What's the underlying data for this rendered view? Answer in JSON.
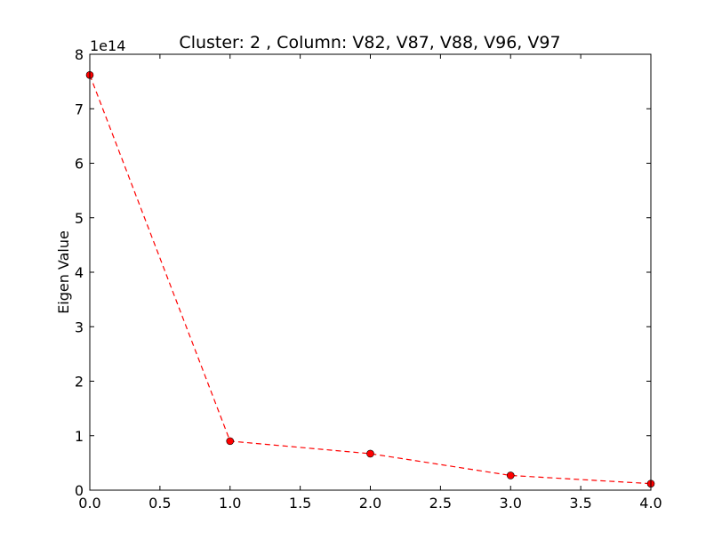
{
  "chart_data": {
    "type": "line",
    "title": "Cluster: 2 , Column: V82, V87, V88, V96, V97",
    "xlabel": "",
    "ylabel": "Eigen Value",
    "y_offset_label": "1e14",
    "xlim": [
      0.0,
      4.0
    ],
    "ylim": [
      0,
      8
    ],
    "x_ticks": [
      0.0,
      0.5,
      1.0,
      1.5,
      2.0,
      2.5,
      3.0,
      3.5,
      4.0
    ],
    "x_tick_labels": [
      "0.0",
      "0.5",
      "1.0",
      "1.5",
      "2.0",
      "2.5",
      "3.0",
      "3.5",
      "4.0"
    ],
    "y_ticks": [
      0,
      1,
      2,
      3,
      4,
      5,
      6,
      7,
      8
    ],
    "y_tick_labels": [
      "0",
      "1",
      "2",
      "3",
      "4",
      "5",
      "6",
      "7",
      "8"
    ],
    "grid": false,
    "series": [
      {
        "x": [
          0,
          1,
          2,
          3,
          4
        ],
        "values": [
          7.62,
          0.9,
          0.67,
          0.27,
          0.12
        ],
        "color": "#ff0000",
        "line_style": "dashed",
        "marker": "circle"
      }
    ]
  }
}
